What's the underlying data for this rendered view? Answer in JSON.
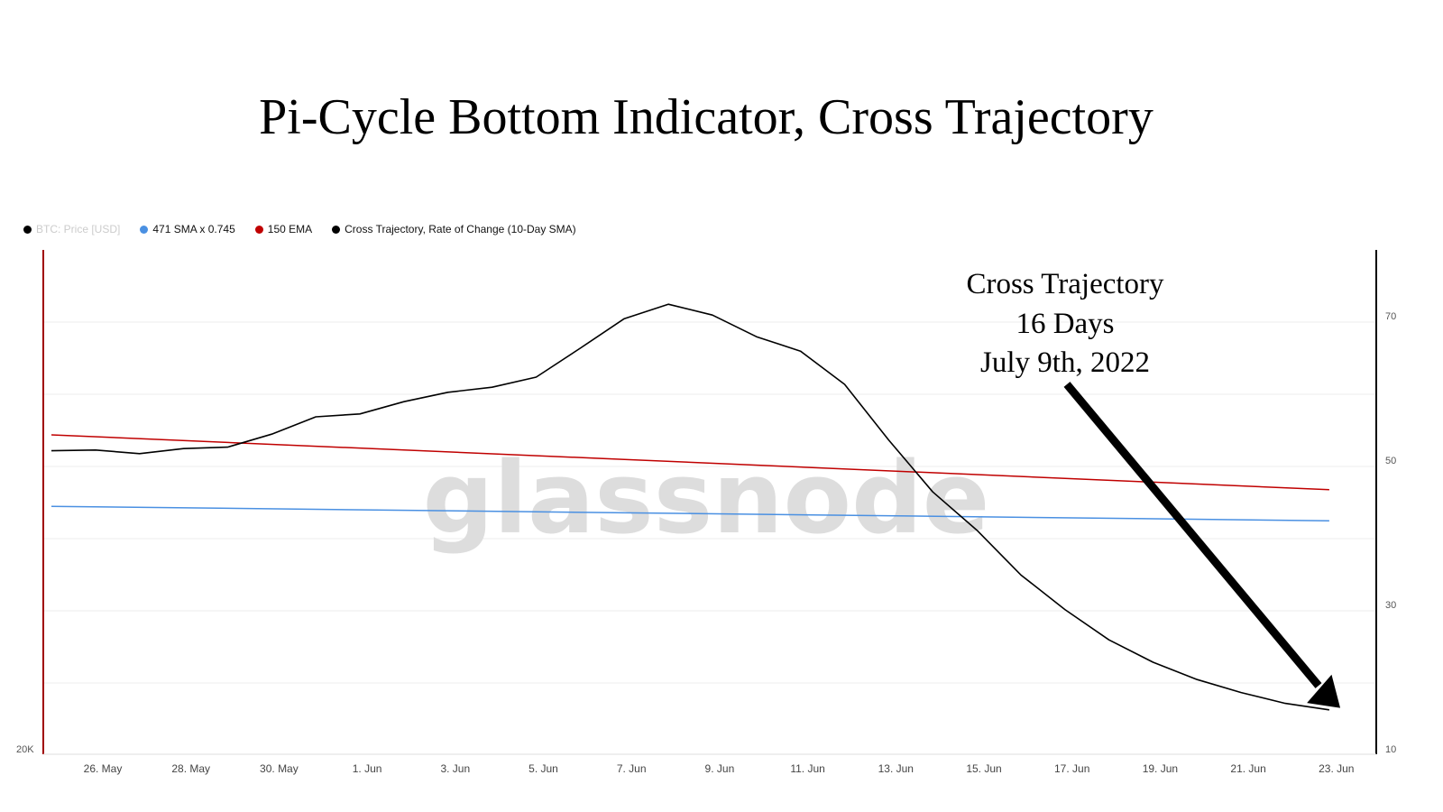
{
  "chart_data": {
    "type": "line",
    "title": "Pi-Cycle Bottom Indicator, Cross Trajectory",
    "watermark": "glassnode",
    "legend_position": "top-left",
    "legend": [
      {
        "label": "BTC: Price [USD]",
        "color": "#000000",
        "dimmed": true
      },
      {
        "label": "471 SMA x 0.745",
        "color": "#4a90e2"
      },
      {
        "label": "150 EMA",
        "color": "#c00000"
      },
      {
        "label": "Cross Trajectory, Rate of Change (10-Day SMA)",
        "color": "#000000"
      }
    ],
    "x_tick_labels": [
      "26. May",
      "28. May",
      "30. May",
      "1. Jun",
      "3. Jun",
      "5. Jun",
      "7. Jun",
      "9. Jun",
      "11. Jun",
      "13. Jun",
      "15. Jun",
      "17. Jun",
      "19. Jun",
      "21. Jun",
      "23. Jun"
    ],
    "x_range": [
      "2022-05-25",
      "2022-06-23"
    ],
    "left_axis": {
      "tick_labels": [
        "20K"
      ]
    },
    "right_axis": {
      "tick_labels": [
        "10",
        "30",
        "50",
        "70"
      ],
      "range": [
        10,
        79
      ]
    },
    "grid": true,
    "series": [
      {
        "name": "Cross Trajectory, Rate of Change (10-Day SMA)",
        "color": "#000000",
        "axis": "right",
        "x": [
          "2022-05-25",
          "2022-05-26",
          "2022-05-27",
          "2022-05-28",
          "2022-05-29",
          "2022-05-30",
          "2022-05-31",
          "2022-06-01",
          "2022-06-02",
          "2022-06-03",
          "2022-06-04",
          "2022-06-05",
          "2022-06-06",
          "2022-06-07",
          "2022-06-08",
          "2022-06-09",
          "2022-06-10",
          "2022-06-11",
          "2022-06-12",
          "2022-06-13",
          "2022-06-14",
          "2022-06-15",
          "2022-06-16",
          "2022-06-17",
          "2022-06-18",
          "2022-06-19",
          "2022-06-20",
          "2022-06-21",
          "2022-06-22",
          "2022-06-23"
        ],
        "values": [
          51.3,
          51.4,
          50.9,
          51.6,
          51.8,
          53.6,
          56.0,
          56.4,
          58.1,
          59.4,
          60.1,
          61.5,
          65.5,
          69.6,
          71.6,
          70.1,
          67.1,
          65.1,
          60.5,
          52.8,
          45.6,
          40.3,
          34.1,
          29.3,
          25.1,
          22.0,
          19.6,
          17.8,
          16.3,
          15.4
        ]
      },
      {
        "name": "150 EMA",
        "color": "#c00000",
        "axis": "right",
        "x": [
          "2022-05-25",
          "2022-06-23"
        ],
        "values": [
          53.5,
          45.9
        ]
      },
      {
        "name": "471 SMA x 0.745",
        "color": "#4a90e2",
        "axis": "right",
        "x": [
          "2022-05-25",
          "2022-06-23"
        ],
        "values": [
          43.6,
          41.6
        ]
      }
    ],
    "annotation": {
      "lines": [
        "Cross Trajectory",
        "16 Days",
        "July 9th, 2022"
      ],
      "arrow_to": "2022-06-23"
    }
  }
}
